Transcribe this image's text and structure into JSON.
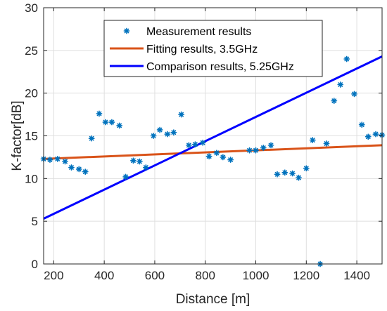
{
  "chart_data": {
    "type": "scatter",
    "xlabel": "Distance [m]",
    "ylabel": "K-factor[dB]",
    "xlim": [
      160,
      1500
    ],
    "ylim": [
      0,
      30
    ],
    "xticks": [
      200,
      400,
      600,
      800,
      1000,
      1200,
      1400
    ],
    "yticks": [
      0,
      5,
      10,
      15,
      20,
      25,
      30
    ],
    "grid": true,
    "legend_position": "top-center",
    "series": [
      {
        "name": "Measurement results",
        "kind": "scatter",
        "marker": "*",
        "color": "#0072BD",
        "x": [
          160,
          185,
          215,
          245,
          270,
          300,
          325,
          350,
          380,
          405,
          430,
          460,
          485,
          515,
          540,
          565,
          595,
          620,
          650,
          675,
          705,
          735,
          760,
          790,
          815,
          845,
          870,
          900,
          975,
          1000,
          1030,
          1060,
          1085,
          1115,
          1145,
          1170,
          1200,
          1225,
          1255,
          1280,
          1310,
          1335,
          1360,
          1390,
          1420,
          1445,
          1475,
          1500
        ],
        "y": [
          12.3,
          12.2,
          12.3,
          12.0,
          11.3,
          11.1,
          10.8,
          14.7,
          17.6,
          16.6,
          16.6,
          16.2,
          10.2,
          12.1,
          12.0,
          11.3,
          15.0,
          15.7,
          15.2,
          15.4,
          17.5,
          13.9,
          14.0,
          14.2,
          12.6,
          13.0,
          12.5,
          12.2,
          13.3,
          13.3,
          13.6,
          13.9,
          10.5,
          10.7,
          10.6,
          10.1,
          11.2,
          14.5,
          0.0,
          14.1,
          19.1,
          21.0,
          24.0,
          19.9,
          16.3,
          14.9,
          15.2,
          15.1
        ]
      },
      {
        "name": "Fitting results, 3.5GHz",
        "kind": "line",
        "color": "#D95319",
        "x": [
          160,
          1500
        ],
        "y": [
          12.3,
          13.9
        ]
      },
      {
        "name": "Comparison results, 5.25GHz",
        "kind": "line",
        "color": "#0000FF",
        "x": [
          160,
          1500
        ],
        "y": [
          5.3,
          24.3
        ]
      }
    ]
  }
}
